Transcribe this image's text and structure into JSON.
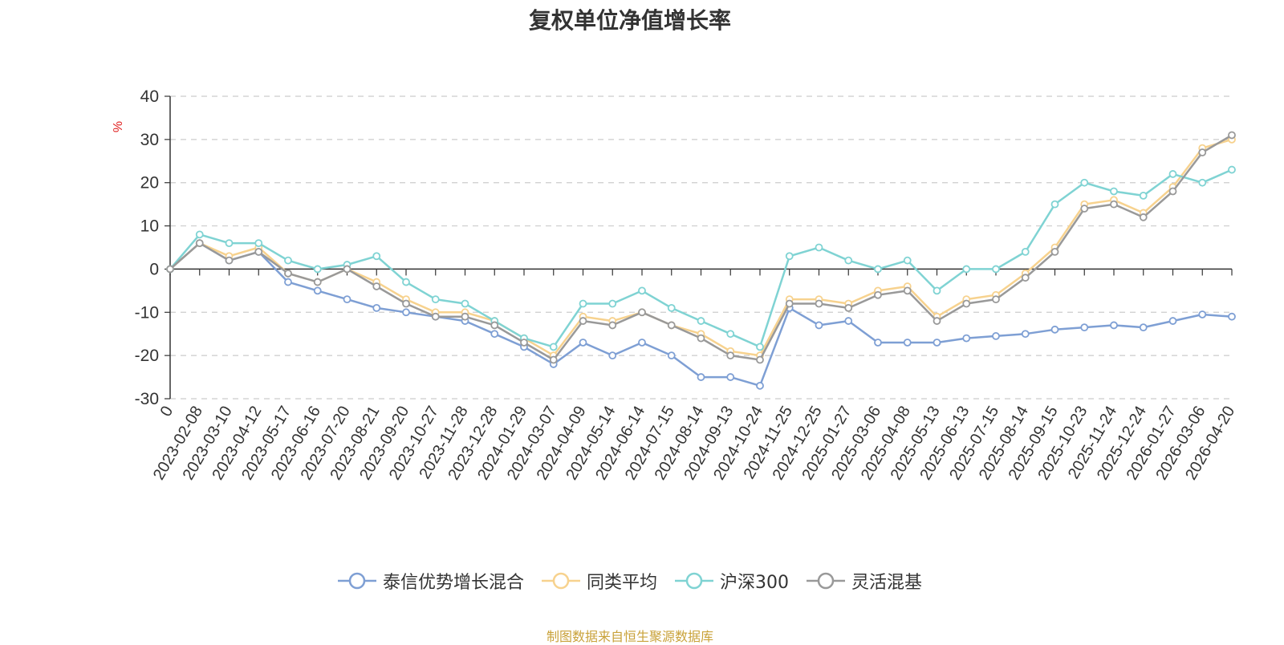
{
  "title": "复权单位净值增长率",
  "source_note": "制图数据来自恒生聚源数据库",
  "chart_data": {
    "type": "line",
    "title": "复权单位净值增长率",
    "ylabel": "%",
    "ylim": [
      -30,
      40
    ],
    "yticks": [
      40,
      30,
      20,
      10,
      0,
      -10,
      -20,
      -30
    ],
    "grid": true,
    "legend_position": "bottom",
    "x_tick_labels": [
      "0",
      "2023-02-08",
      "2023-03-10",
      "2023-04-12",
      "2023-05-17",
      "2023-06-16",
      "2023-07-20",
      "2023-08-21",
      "2023-09-20",
      "2023-10-27",
      "2023-11-28",
      "2023-12-28",
      "2024-01-29",
      "2024-03-07",
      "2024-04-09",
      "2024-05-14",
      "2024-06-14",
      "2024-07-15",
      "2024-08-14",
      "2024-09-13",
      "2024-10-24",
      "2024-11-25",
      "2024-12-25",
      "2025-01-27",
      "2025-03-06",
      "2025-04-08",
      "2025-05-13",
      "2025-06-13",
      "2025-07-15",
      "2025-08-14",
      "2025-09-15",
      "2025-10-23",
      "2025-11-24",
      "2025-12-24",
      "2026-01-27",
      "2026-03-06",
      "2026-04-20"
    ],
    "series": [
      {
        "name": "泰信优势增长混合",
        "color": "#7e9fd4",
        "values": [
          0,
          6,
          2,
          4,
          -3,
          -5,
          -7,
          -9,
          -10,
          -11,
          -12,
          -15,
          -18,
          -22,
          -17,
          -20,
          -17,
          -20,
          -25,
          -25,
          -27,
          -9,
          -13,
          -12,
          -17,
          -17,
          -17,
          -16,
          -15.5,
          -15,
          -14,
          -13.5,
          -13,
          -13.5,
          -12,
          -10.5,
          -11
        ]
      },
      {
        "name": "同类平均",
        "color": "#f7d28e",
        "values": [
          0,
          6,
          3,
          5,
          -1,
          -3,
          0,
          -3,
          -7,
          -10,
          -10,
          -12,
          -16,
          -20,
          -11,
          -12,
          -10,
          -13,
          -15,
          -19,
          -20,
          -7,
          -7,
          -8,
          -5,
          -4,
          -11,
          -7,
          -6,
          -1,
          5,
          15,
          16,
          13,
          19,
          28,
          30
        ]
      },
      {
        "name": "沪深300",
        "color": "#7fd3d3",
        "values": [
          0,
          8,
          6,
          6,
          2,
          0,
          1,
          3,
          -3,
          -7,
          -8,
          -12,
          -16,
          -18,
          -8,
          -8,
          -5,
          -9,
          -12,
          -15,
          -18,
          3,
          5,
          2,
          0,
          2,
          -5,
          0,
          0,
          4,
          15,
          20,
          18,
          17,
          22,
          20,
          23
        ]
      },
      {
        "name": "灵活混基",
        "color": "#999999",
        "values": [
          0,
          6,
          2,
          4,
          -1,
          -3,
          0,
          -4,
          -8,
          -11,
          -11,
          -13,
          -17,
          -21,
          -12,
          -13,
          -10,
          -13,
          -16,
          -20,
          -21,
          -8,
          -8,
          -9,
          -6,
          -5,
          -12,
          -8,
          -7,
          -2,
          4,
          14,
          15,
          12,
          18,
          27,
          31
        ]
      }
    ]
  }
}
